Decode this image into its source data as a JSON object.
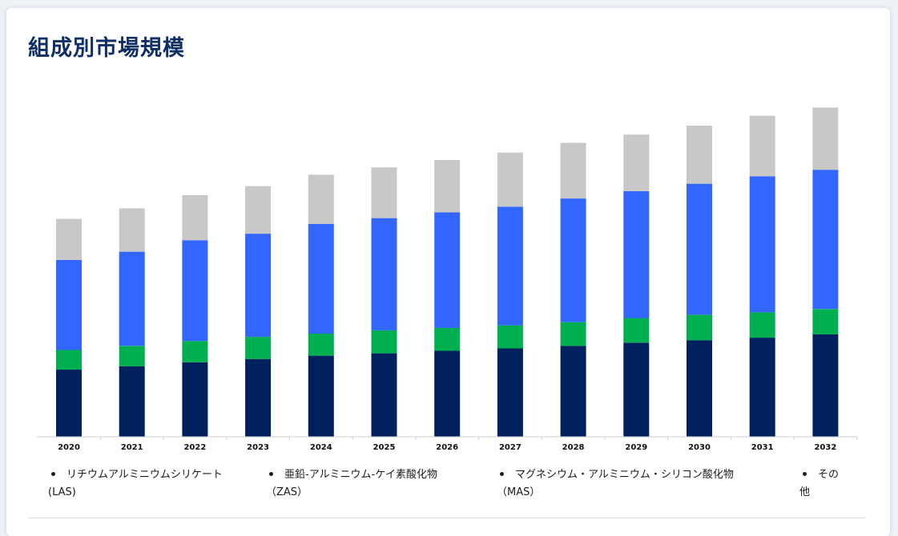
{
  "page": {
    "title": "組成別市場規模"
  },
  "chart_data": {
    "type": "bar",
    "stacked": true,
    "categories": [
      "2020",
      "2021",
      "2022",
      "2023",
      "2024",
      "2025",
      "2026",
      "2027",
      "2028",
      "2029",
      "2030",
      "2031",
      "2032"
    ],
    "series": [
      {
        "name": "リチウムアルミニウムシリケート (LAS)",
        "color": "#00215e",
        "values": [
          8.2,
          8.6,
          9.1,
          9.5,
          9.9,
          10.2,
          10.5,
          10.8,
          11.1,
          11.5,
          11.8,
          12.1,
          12.5
        ]
      },
      {
        "name": "亜鉛-アルミニウム-ケイ素酸化物 （ZAS）",
        "color": "#00b050",
        "values": [
          2.4,
          2.5,
          2.6,
          2.7,
          2.7,
          2.8,
          2.8,
          2.8,
          2.9,
          3.0,
          3.1,
          3.1,
          3.1
        ]
      },
      {
        "name": "マグネシウム・アルミニウム・シリコン酸化物 （MAS）",
        "color": "#3366ff",
        "values": [
          11.0,
          11.5,
          12.3,
          12.6,
          13.4,
          13.7,
          14.1,
          14.5,
          15.1,
          15.5,
          16.0,
          16.6,
          17.0
        ]
      },
      {
        "name": "その他",
        "color": "#c8c8c8",
        "values": [
          5.0,
          5.3,
          5.5,
          5.8,
          6.0,
          6.2,
          6.4,
          6.6,
          6.8,
          6.9,
          7.1,
          7.4,
          7.6
        ]
      }
    ],
    "ylim": [
      0,
      42
    ],
    "xlabel": "",
    "ylabel": "",
    "grid": false,
    "legend_position": "bottom"
  },
  "legend": {
    "items": [
      {
        "line1": "リチウムアルミニウムシリケート",
        "line2": "(LAS)"
      },
      {
        "line1": "亜鉛-アルミニウム-ケイ素酸化物",
        "line2": "（ZAS）"
      },
      {
        "line1": "マグネシウム・アルミニウム・シリコン酸化物",
        "line2": "（MAS）"
      },
      {
        "line1": "その",
        "line2": "他"
      }
    ]
  }
}
